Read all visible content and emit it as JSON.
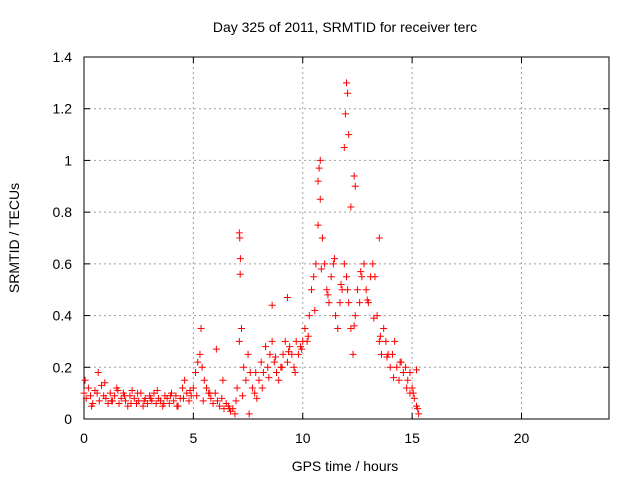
{
  "chart_data": {
    "type": "scatter",
    "title": "Day 325 of 2011, SRMTID for receiver terc",
    "xlabel": "GPS time / hours",
    "ylabel": "SRMTID / TECUs",
    "xlim": [
      0,
      24
    ],
    "ylim": [
      0,
      1.4
    ],
    "grid": true,
    "marker": "+",
    "color": "#ff0000",
    "xticks": [
      0,
      5,
      10,
      15,
      20
    ],
    "yticks": [
      0,
      0.2,
      0.4,
      0.6,
      0.8,
      1,
      1.2,
      1.4
    ],
    "xtick_labels": [
      "0",
      "5",
      "10",
      "15",
      "20"
    ],
    "ytick_labels": [
      "0",
      "0.2",
      "0.4",
      "0.6",
      "0.8",
      "1",
      "1.2",
      "1.4"
    ],
    "series": [
      {
        "x": [
          0.0,
          0.1,
          0.2,
          0.3,
          0.4,
          0.5,
          0.6,
          0.7,
          0.8,
          0.9,
          1.0,
          1.1,
          1.2,
          1.3,
          1.4,
          1.5,
          1.6,
          1.7,
          1.8,
          1.9,
          2.0,
          2.1,
          2.2,
          2.3,
          2.4,
          2.5,
          2.6,
          2.7,
          2.8,
          2.9,
          3.0,
          3.1,
          3.2,
          3.3,
          3.4,
          3.5,
          3.6,
          3.7,
          3.8,
          3.9,
          4.0,
          4.1,
          4.2,
          4.3,
          4.4,
          4.5,
          4.6,
          4.7,
          4.8,
          4.9,
          5.0,
          5.1,
          5.2,
          5.3,
          5.4,
          5.5,
          5.6,
          5.7,
          5.8,
          5.9,
          6.0,
          6.1,
          6.2,
          6.3,
          6.4,
          6.5,
          6.6,
          6.7,
          6.8,
          6.9,
          7.0,
          7.1,
          7.15,
          7.2,
          7.3,
          7.4,
          7.5,
          7.6,
          7.7,
          7.8,
          7.9,
          8.0,
          8.1,
          8.2,
          8.3,
          8.4,
          8.5,
          8.6,
          8.7,
          8.8,
          8.9,
          9.0,
          9.1,
          9.2,
          9.3,
          9.4,
          9.5,
          9.6,
          9.7,
          9.8,
          9.9,
          10.0,
          10.1,
          10.2,
          10.3,
          10.4,
          10.5,
          10.6,
          10.7,
          10.8,
          10.9,
          11.0,
          11.1,
          11.2,
          11.3,
          11.4,
          11.5,
          11.6,
          11.7,
          11.8,
          11.9,
          12.0,
          12.1,
          12.2,
          12.3,
          12.4,
          12.5,
          12.6,
          12.7,
          12.8,
          12.9,
          13.0,
          13.1,
          13.2,
          13.3,
          13.4,
          13.5,
          13.6,
          13.7,
          13.8,
          13.9,
          14.0,
          14.1,
          14.2,
          14.3,
          14.4,
          14.5,
          14.6,
          14.7,
          14.8,
          14.9,
          15.0,
          15.1,
          15.2,
          15.3,
          0.05,
          0.35,
          0.65,
          0.95,
          1.25,
          1.55,
          1.85,
          2.15,
          2.45,
          2.75,
          3.05,
          3.35,
          3.65,
          3.95,
          4.25,
          4.55,
          4.85,
          5.15,
          5.45,
          5.75,
          6.05,
          6.35,
          6.65,
          6.95,
          7.25,
          7.55,
          7.85,
          8.15,
          8.45,
          8.75,
          9.05,
          9.35,
          9.65,
          9.95,
          10.25,
          10.55,
          10.85,
          11.15,
          11.45,
          11.75,
          12.05,
          12.35,
          12.65,
          12.95,
          13.25,
          13.55,
          13.85,
          14.15,
          14.45,
          14.75,
          15.05,
          15.25,
          10.7,
          10.75,
          10.8,
          11.95,
          12.0,
          12.05,
          12.1,
          11.9,
          12.35,
          12.4,
          7.1,
          7.12,
          7.14,
          8.6,
          9.3,
          5.35,
          12.2,
          13.5,
          14.9,
          15.2
        ],
        "y": [
          0.1,
          0.08,
          0.12,
          0.09,
          0.06,
          0.11,
          0.1,
          0.07,
          0.13,
          0.09,
          0.08,
          0.06,
          0.1,
          0.07,
          0.09,
          0.12,
          0.06,
          0.08,
          0.1,
          0.07,
          0.05,
          0.09,
          0.11,
          0.08,
          0.06,
          0.07,
          0.1,
          0.05,
          0.08,
          0.06,
          0.09,
          0.07,
          0.1,
          0.06,
          0.08,
          0.07,
          0.05,
          0.09,
          0.08,
          0.06,
          0.1,
          0.07,
          0.09,
          0.05,
          0.08,
          0.12,
          0.15,
          0.1,
          0.07,
          0.09,
          0.12,
          0.18,
          0.22,
          0.25,
          0.2,
          0.15,
          0.12,
          0.1,
          0.08,
          0.06,
          0.1,
          0.07,
          0.05,
          0.08,
          0.04,
          0.06,
          0.05,
          0.03,
          0.04,
          0.02,
          0.12,
          0.3,
          0.62,
          0.35,
          0.2,
          0.15,
          0.25,
          0.18,
          0.12,
          0.1,
          0.08,
          0.15,
          0.22,
          0.18,
          0.28,
          0.2,
          0.25,
          0.3,
          0.22,
          0.18,
          0.15,
          0.2,
          0.25,
          0.3,
          0.22,
          0.28,
          0.25,
          0.2,
          0.3,
          0.25,
          0.28,
          0.3,
          0.35,
          0.3,
          0.4,
          0.5,
          0.55,
          0.6,
          0.75,
          0.85,
          0.7,
          0.6,
          0.5,
          0.45,
          0.55,
          0.6,
          0.4,
          0.35,
          0.45,
          0.5,
          0.6,
          0.55,
          0.45,
          0.35,
          0.25,
          0.4,
          0.5,
          0.45,
          0.55,
          0.6,
          0.5,
          0.45,
          0.55,
          0.6,
          0.55,
          0.4,
          0.3,
          0.25,
          0.35,
          0.3,
          0.25,
          0.2,
          0.25,
          0.3,
          0.2,
          0.15,
          0.22,
          0.18,
          0.2,
          0.15,
          0.1,
          0.12,
          0.08,
          0.05,
          0.02,
          0.15,
          0.05,
          0.18,
          0.14,
          0.07,
          0.11,
          0.09,
          0.06,
          0.1,
          0.07,
          0.08,
          0.11,
          0.06,
          0.09,
          0.05,
          0.08,
          0.11,
          0.09,
          0.07,
          0.1,
          0.27,
          0.15,
          0.04,
          0.07,
          0.09,
          0.02,
          0.18,
          0.12,
          0.16,
          0.24,
          0.2,
          0.26,
          0.18,
          0.27,
          0.32,
          0.42,
          0.58,
          0.48,
          0.62,
          0.52,
          0.5,
          0.36,
          0.57,
          0.46,
          0.39,
          0.32,
          0.24,
          0.16,
          0.22,
          0.12,
          0.1,
          0.04,
          0.92,
          0.97,
          1.0,
          1.18,
          1.3,
          1.26,
          1.1,
          1.05,
          0.94,
          0.9,
          0.72,
          0.7,
          0.56,
          0.44,
          0.47,
          0.35,
          0.82,
          0.7,
          0.18,
          0.19
        ]
      }
    ]
  }
}
